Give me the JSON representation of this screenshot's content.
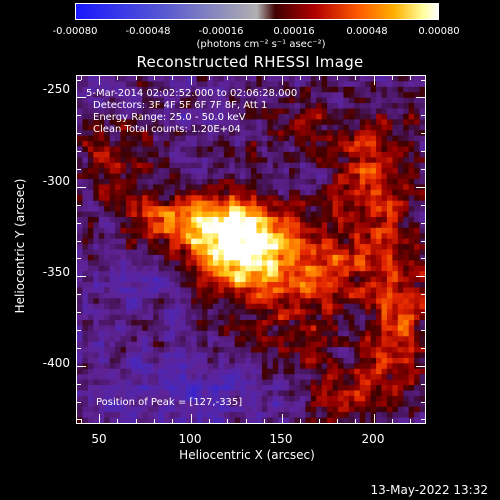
{
  "chart_data": {
    "type": "heatmap",
    "title": "Reconstructed RHESSI Image",
    "xlabel": "Heliocentric X (arcsec)",
    "ylabel": "Heliocentric Y (arcsec)",
    "xlim": [
      38,
      228
    ],
    "ylim": [
      -432,
      -238
    ],
    "x_ticks": [
      "50",
      "100",
      "150",
      "200"
    ],
    "x_tick_values": [
      50,
      100,
      150,
      200
    ],
    "y_ticks": [
      "-250",
      "-300",
      "-350",
      "-400"
    ],
    "y_tick_values": [
      -250,
      -300,
      -350,
      -400
    ],
    "colorbar": {
      "labels": [
        "-0.00080",
        "-0.00048",
        "-0.00016",
        "0.00016",
        "0.00048",
        "0.00080"
      ],
      "values": [
        -0.0008,
        -0.00048,
        -0.00016,
        0.00016,
        0.00048,
        0.0008
      ],
      "range": [
        -0.0008,
        0.0008
      ],
      "units": "(photons cm⁻² s⁻¹ asec⁻²)"
    },
    "annotations": {
      "line1": "5-Mar-2014 02:02:52.000 to 02:06:28.000",
      "line2": "Detectors: 3F 4F 5F 6F 7F 8F, Att 1",
      "line3": "Energy Range: 25.0 - 50.0 keV",
      "line4": "Clean     Total counts: 1.20E+04",
      "peak": "Position of Peak = [127,-335]"
    },
    "peak": {
      "x": 127,
      "y": -335
    },
    "sources": [
      {
        "x": 127,
        "y": -335,
        "sx": 22,
        "sy": 18,
        "amp": 1.0
      },
      {
        "x": 100,
        "y": -318,
        "sx": 26,
        "sy": 10,
        "amp": 0.55
      },
      {
        "x": 170,
        "y": -350,
        "sx": 22,
        "sy": 16,
        "amp": 0.45
      },
      {
        "x": 60,
        "y": -285,
        "sx": 18,
        "sy": 14,
        "amp": 0.35
      },
      {
        "x": 200,
        "y": -300,
        "sx": 18,
        "sy": 30,
        "amp": 0.45
      },
      {
        "x": 215,
        "y": -375,
        "sx": 12,
        "sy": 25,
        "amp": 0.5
      },
      {
        "x": 185,
        "y": -415,
        "sx": 15,
        "sy": 12,
        "amp": 0.4
      },
      {
        "x": 145,
        "y": -390,
        "sx": 25,
        "sy": 15,
        "amp": 0.25
      },
      {
        "x": 155,
        "y": -265,
        "sx": 20,
        "sy": 12,
        "amp": 0.22
      },
      {
        "x": 80,
        "y": -355,
        "sx": 25,
        "sy": 12,
        "amp": -0.2
      },
      {
        "x": 110,
        "y": -410,
        "sx": 30,
        "sy": 15,
        "amp": -0.25
      }
    ]
  },
  "timestamp": "13-May-2022 13:32"
}
